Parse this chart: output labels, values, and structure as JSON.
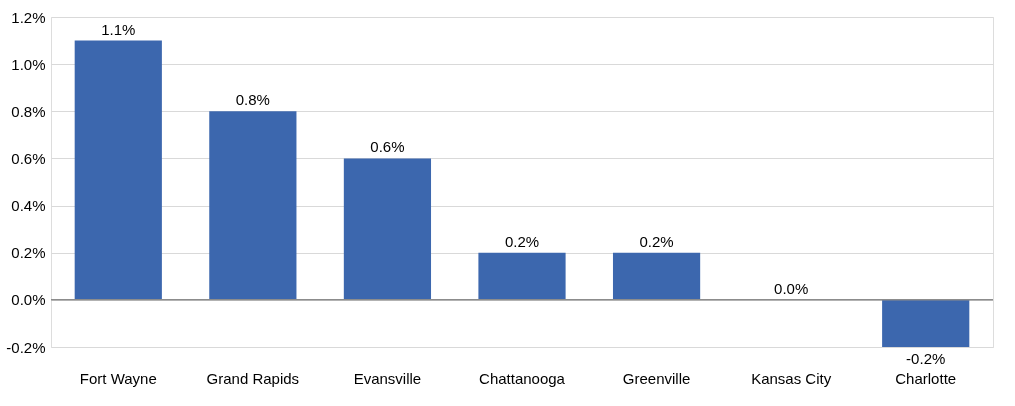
{
  "chart_data": {
    "type": "bar",
    "categories": [
      "Fort Wayne",
      "Grand Rapids",
      "Evansville",
      "Chattanooga",
      "Greenville",
      "Kansas City",
      "Charlotte"
    ],
    "values": [
      1.1,
      0.8,
      0.6,
      0.2,
      0.2,
      0.0,
      -0.2
    ],
    "value_labels": [
      "1.1%",
      "0.8%",
      "0.6%",
      "0.2%",
      "0.2%",
      "0.0%",
      "-0.2%"
    ],
    "color": "#3c67ae",
    "ylim": [
      -0.2,
      1.2
    ],
    "yticks": [
      {
        "value": -0.2,
        "label": "-0.2%"
      },
      {
        "value": 0,
        "label": "0.0%"
      },
      {
        "value": 0.2,
        "label": "0.2%"
      },
      {
        "value": 0.4,
        "label": "0.4%"
      },
      {
        "value": 0.6,
        "label": "0.6%"
      },
      {
        "value": 0.8,
        "label": "0.8%"
      },
      {
        "value": 1.0,
        "label": "1.0%"
      },
      {
        "value": 1.2,
        "label": "1.2%"
      }
    ],
    "ref_lines": [
      {
        "axis": "y",
        "value": 0,
        "color": "#8c8c8c"
      }
    ],
    "grid": "y"
  }
}
